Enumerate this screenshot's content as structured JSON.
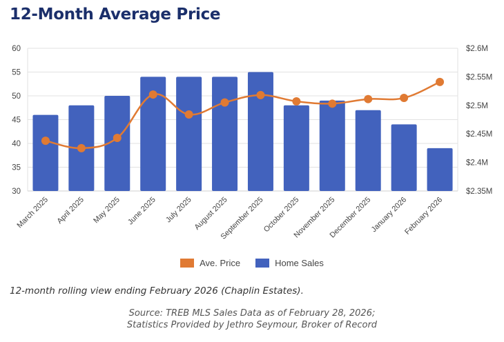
{
  "title": "12-Month Average Price",
  "colors": {
    "title": "#1b2f6b",
    "bars": "#4262bd",
    "line": "#e07a33",
    "grid": "#e2e2e2"
  },
  "chart_data": {
    "type": "bar+line",
    "title": "12-Month Average Price",
    "categories": [
      "March 2025",
      "April 2025",
      "May 2025",
      "June 2025",
      "July 2025",
      "August 2025",
      "September 2025",
      "October 2025",
      "November 2025",
      "December 2025",
      "January 2026",
      "February 2026"
    ],
    "series": [
      {
        "name": "Home Sales",
        "type": "bar",
        "axis": "left",
        "values": [
          46,
          48,
          50,
          54,
          54,
          54,
          55,
          48,
          49,
          47,
          44,
          39
        ]
      },
      {
        "name": "Ave. Price",
        "type": "line",
        "axis": "right",
        "values": [
          2438000,
          2425000,
          2443000,
          2519000,
          2484000,
          2505000,
          2518000,
          2507000,
          2503000,
          2511000,
          2513000,
          2541000
        ]
      }
    ],
    "left_axis": {
      "range": [
        30,
        60
      ],
      "ticks": [
        "60",
        "55",
        "50",
        "45",
        "40",
        "35",
        "30"
      ],
      "tick_values": [
        60,
        55,
        50,
        45,
        40,
        35,
        30
      ]
    },
    "right_axis": {
      "range": [
        2350000,
        2600000
      ],
      "ticks": [
        "$2.6M",
        "$2.55M",
        "$2.5M",
        "$2.45M",
        "$2.4M",
        "$2.35M"
      ],
      "tick_values": [
        2600000,
        2550000,
        2500000,
        2450000,
        2400000,
        2350000
      ]
    },
    "xlabel": "",
    "ylabel": "",
    "grid": true,
    "legend": {
      "position": "bottom",
      "entries": [
        "Ave. Price",
        "Home Sales"
      ]
    }
  },
  "legend": [
    {
      "label": "Ave. Price",
      "color": "#e07a33"
    },
    {
      "label": "Home Sales",
      "color": "#4262bd"
    }
  ],
  "caption": "12-month rolling view ending February 2026 (Chaplin Estates).",
  "source_line1": "Source: TREB MLS Sales Data as of February 28, 2026;",
  "source_line2": "Statistics Provided by Jethro Seymour, Broker of Record"
}
